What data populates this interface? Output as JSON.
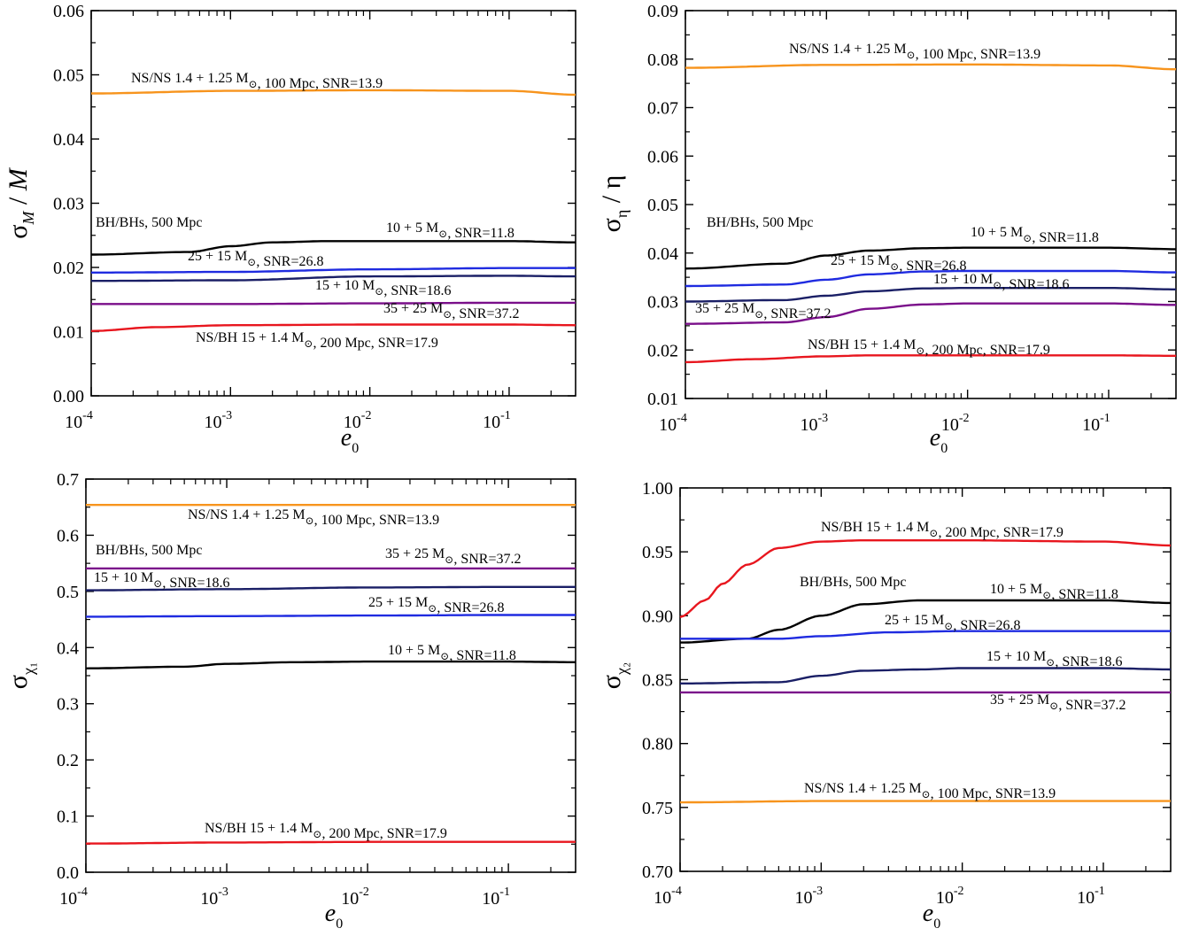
{
  "colors": {
    "black": "#000000",
    "blue": "#1f2be0",
    "navy": "#1a1f66",
    "purple": "#7a0f8a",
    "red": "#e8161e",
    "orange": "#f7941d"
  },
  "chart_data": [
    {
      "type": "line",
      "panel": "top-left",
      "xscale": "log",
      "xlim": [
        0.0001,
        0.3
      ],
      "ylim": [
        0.0,
        0.06
      ],
      "ylabel": "σ_M / M",
      "xlabel": "e_0",
      "yticks": [
        0.0,
        0.01,
        0.02,
        0.03,
        0.04,
        0.05,
        0.06
      ],
      "ytick_labels": [
        "0.00",
        "0.01",
        "0.02",
        "0.03",
        "0.04",
        "0.05",
        "0.06"
      ],
      "header": "BH/BHs, 500 Mpc",
      "series": [
        {
          "color": "orange",
          "x": [
            0.0001,
            0.001,
            0.01,
            0.1,
            0.3
          ],
          "y": [
            0.0471,
            0.0475,
            0.0476,
            0.0475,
            0.0469
          ],
          "label": "NS/NS 1.4 + 1.25 M⊙, 100 Mpc, SNR=13.9"
        },
        {
          "color": "black",
          "x": [
            0.0001,
            0.0005,
            0.001,
            0.002,
            0.005,
            0.01,
            0.1,
            0.3
          ],
          "y": [
            0.022,
            0.0224,
            0.0233,
            0.0239,
            0.0241,
            0.0241,
            0.0241,
            0.0239
          ],
          "label": "10 + 5 M⊙, SNR=11.8"
        },
        {
          "color": "blue",
          "x": [
            0.0001,
            0.001,
            0.01,
            0.1,
            0.3
          ],
          "y": [
            0.0192,
            0.0193,
            0.0197,
            0.0199,
            0.0199
          ],
          "label": "25 + 15 M⊙, SNR=26.8"
        },
        {
          "color": "navy",
          "x": [
            0.0001,
            0.001,
            0.01,
            0.1,
            0.3
          ],
          "y": [
            0.0179,
            0.018,
            0.0186,
            0.0187,
            0.0186
          ],
          "label": "15 + 10 M⊙, SNR=18.6"
        },
        {
          "color": "purple",
          "x": [
            0.0001,
            0.001,
            0.01,
            0.1,
            0.3
          ],
          "y": [
            0.0143,
            0.0143,
            0.0144,
            0.0145,
            0.0145
          ],
          "label": "35 + 25 M⊙, SNR=37.2"
        },
        {
          "color": "red",
          "x": [
            0.0001,
            0.0003,
            0.001,
            0.01,
            0.1,
            0.3
          ],
          "y": [
            0.0101,
            0.0107,
            0.011,
            0.0111,
            0.0111,
            0.011
          ],
          "label": "NS/BH 15 + 1.4 M⊙, 200 Mpc, SNR=17.9"
        }
      ]
    },
    {
      "type": "line",
      "panel": "top-right",
      "xscale": "log",
      "xlim": [
        0.0001,
        0.3
      ],
      "ylim": [
        0.01,
        0.09
      ],
      "ylabel": "σ_η / η",
      "xlabel": "e_0",
      "yticks": [
        0.01,
        0.02,
        0.03,
        0.04,
        0.05,
        0.06,
        0.07,
        0.08,
        0.09
      ],
      "ytick_labels": [
        "0.01",
        "0.02",
        "0.03",
        "0.04",
        "0.05",
        "0.06",
        "0.07",
        "0.08",
        "0.09"
      ],
      "header": "BH/BHs, 500 Mpc",
      "series": [
        {
          "color": "orange",
          "x": [
            0.0001,
            0.001,
            0.01,
            0.1,
            0.3
          ],
          "y": [
            0.0782,
            0.0788,
            0.0789,
            0.0787,
            0.0779
          ],
          "label": "NS/NS 1.4 + 1.25 M⊙, 100 Mpc, SNR=13.9"
        },
        {
          "color": "black",
          "x": [
            0.0001,
            0.0005,
            0.001,
            0.002,
            0.005,
            0.01,
            0.1,
            0.3
          ],
          "y": [
            0.0368,
            0.0378,
            0.0395,
            0.0405,
            0.041,
            0.0411,
            0.0411,
            0.0408
          ],
          "label": "10 + 5 M⊙, SNR=11.8"
        },
        {
          "color": "blue",
          "x": [
            0.0001,
            0.0005,
            0.001,
            0.002,
            0.005,
            0.01,
            0.1,
            0.3
          ],
          "y": [
            0.0332,
            0.0335,
            0.0345,
            0.0356,
            0.0362,
            0.0363,
            0.0363,
            0.036
          ],
          "label": "25 + 15 M⊙, SNR=26.8"
        },
        {
          "color": "navy",
          "x": [
            0.0001,
            0.0005,
            0.001,
            0.002,
            0.005,
            0.01,
            0.1,
            0.3
          ],
          "y": [
            0.03,
            0.0303,
            0.0312,
            0.0321,
            0.0327,
            0.0328,
            0.0328,
            0.0325
          ],
          "label": "15 + 10 M⊙, SNR=18.6"
        },
        {
          "color": "purple",
          "x": [
            0.0001,
            0.0005,
            0.001,
            0.002,
            0.005,
            0.01,
            0.1,
            0.3
          ],
          "y": [
            0.0254,
            0.0257,
            0.0268,
            0.0285,
            0.0294,
            0.0296,
            0.0296,
            0.0293
          ],
          "label": "35 + 25 M⊙, SNR=37.2"
        },
        {
          "color": "red",
          "x": [
            0.0001,
            0.0003,
            0.001,
            0.002,
            0.01,
            0.1,
            0.3
          ],
          "y": [
            0.0175,
            0.0181,
            0.0187,
            0.0189,
            0.0189,
            0.0189,
            0.0188
          ],
          "label": "NS/BH 15 + 1.4 M⊙, 200 Mpc, SNR=17.9"
        }
      ]
    },
    {
      "type": "line",
      "panel": "bottom-left",
      "xscale": "log",
      "xlim": [
        0.0001,
        0.3
      ],
      "ylim": [
        0.0,
        0.7
      ],
      "ylabel": "σ_χ1",
      "xlabel": "e_0",
      "yticks": [
        0.0,
        0.1,
        0.2,
        0.3,
        0.4,
        0.5,
        0.6,
        0.7
      ],
      "ytick_labels": [
        "0.0",
        "0.1",
        "0.2",
        "0.3",
        "0.4",
        "0.5",
        "0.6",
        "0.7"
      ],
      "header": "BH/BHs, 500 Mpc",
      "series": [
        {
          "color": "orange",
          "x": [
            0.0001,
            0.001,
            0.01,
            0.1,
            0.3
          ],
          "y": [
            0.654,
            0.654,
            0.654,
            0.654,
            0.654
          ],
          "label": "NS/NS 1.4 + 1.25 M⊙, 100 Mpc, SNR=13.9"
        },
        {
          "color": "purple",
          "x": [
            0.0001,
            0.001,
            0.01,
            0.1,
            0.3
          ],
          "y": [
            0.541,
            0.541,
            0.541,
            0.541,
            0.541
          ],
          "label": "35 + 25 M⊙, SNR=37.2"
        },
        {
          "color": "navy",
          "x": [
            0.0001,
            0.001,
            0.01,
            0.1,
            0.3
          ],
          "y": [
            0.502,
            0.504,
            0.507,
            0.508,
            0.508
          ],
          "label": "15 + 10 M⊙, SNR=18.6"
        },
        {
          "color": "blue",
          "x": [
            0.0001,
            0.001,
            0.01,
            0.1,
            0.3
          ],
          "y": [
            0.455,
            0.456,
            0.457,
            0.458,
            0.458
          ],
          "label": "25 + 15 M⊙, SNR=26.8"
        },
        {
          "color": "black",
          "x": [
            0.0001,
            0.0005,
            0.001,
            0.003,
            0.01,
            0.1,
            0.3
          ],
          "y": [
            0.363,
            0.366,
            0.371,
            0.374,
            0.375,
            0.375,
            0.374
          ],
          "label": "10 + 5 M⊙, SNR=11.8"
        },
        {
          "color": "red",
          "x": [
            0.0001,
            0.001,
            0.01,
            0.1,
            0.3
          ],
          "y": [
            0.051,
            0.053,
            0.054,
            0.054,
            0.054
          ],
          "label": "NS/BH 15 + 1.4 M⊙, 200 Mpc, SNR=17.9"
        }
      ]
    },
    {
      "type": "line",
      "panel": "bottom-right",
      "xscale": "log",
      "xlim": [
        0.0001,
        0.3
      ],
      "ylim": [
        0.7,
        1.0
      ],
      "ylabel": "σ_χ2",
      "xlabel": "e_0",
      "yticks": [
        0.7,
        0.75,
        0.8,
        0.85,
        0.9,
        0.95,
        1.0
      ],
      "ytick_labels": [
        "0.70",
        "0.75",
        "0.80",
        "0.85",
        "0.90",
        "0.95",
        "1.00"
      ],
      "header": "BH/BHs, 500 Mpc",
      "series": [
        {
          "color": "red",
          "x": [
            0.0001,
            0.00015,
            0.0002,
            0.0003,
            0.0005,
            0.001,
            0.002,
            0.01,
            0.1,
            0.3
          ],
          "y": [
            0.899,
            0.912,
            0.925,
            0.94,
            0.953,
            0.958,
            0.959,
            0.959,
            0.958,
            0.955
          ],
          "label": "NS/BH 15 + 1.4 M⊙, 200 Mpc, SNR=17.9"
        },
        {
          "color": "black",
          "x": [
            0.0001,
            0.0003,
            0.0005,
            0.001,
            0.002,
            0.005,
            0.01,
            0.1,
            0.3
          ],
          "y": [
            0.879,
            0.882,
            0.889,
            0.9,
            0.909,
            0.912,
            0.912,
            0.912,
            0.91
          ],
          "label": "10 + 5 M⊙, SNR=11.8"
        },
        {
          "color": "blue",
          "x": [
            0.0001,
            0.0005,
            0.001,
            0.003,
            0.01,
            0.1,
            0.3
          ],
          "y": [
            0.882,
            0.882,
            0.884,
            0.887,
            0.888,
            0.888,
            0.888
          ],
          "label": "25 + 15 M⊙, SNR=26.8"
        },
        {
          "color": "navy",
          "x": [
            0.0001,
            0.0005,
            0.001,
            0.002,
            0.005,
            0.01,
            0.1,
            0.3
          ],
          "y": [
            0.847,
            0.848,
            0.853,
            0.857,
            0.858,
            0.859,
            0.859,
            0.858
          ],
          "label": "15 + 10 M⊙, SNR=18.6"
        },
        {
          "color": "purple",
          "x": [
            0.0001,
            0.001,
            0.01,
            0.1,
            0.3
          ],
          "y": [
            0.84,
            0.84,
            0.84,
            0.84,
            0.84
          ],
          "label": "35 + 25 M⊙, SNR=37.2"
        },
        {
          "color": "orange",
          "x": [
            0.0001,
            0.001,
            0.01,
            0.1,
            0.3
          ],
          "y": [
            0.754,
            0.755,
            0.755,
            0.755,
            0.755
          ],
          "label": "NS/NS 1.4 + 1.25 M⊙, 100 Mpc, SNR=13.9"
        }
      ]
    }
  ]
}
